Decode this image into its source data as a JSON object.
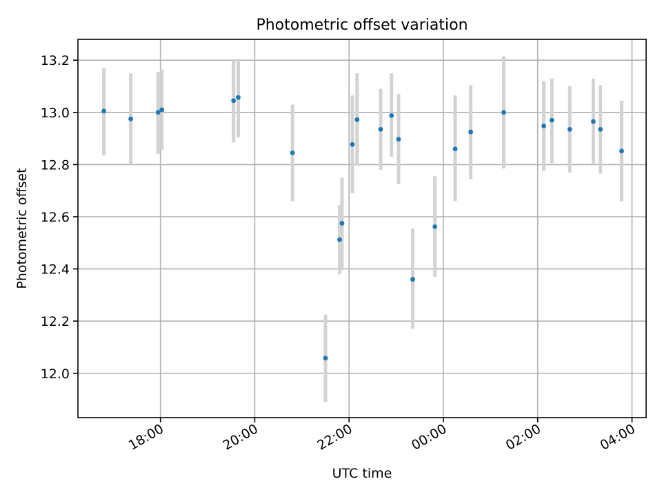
{
  "chart_data": {
    "type": "scatter",
    "title": "Photometric offset variation",
    "xlabel": "UTC time",
    "ylabel": "Photometric offset",
    "x_unit": "hours after 00:00 UTC of the first night (values > 24 are after midnight)",
    "xlim": [
      16.25,
      28.3
    ],
    "ylim": [
      11.83,
      13.28
    ],
    "grid": true,
    "x_ticks": [
      {
        "value": 18,
        "label": "18:00"
      },
      {
        "value": 20,
        "label": "20:00"
      },
      {
        "value": 22,
        "label": "22:00"
      },
      {
        "value": 24,
        "label": "00:00"
      },
      {
        "value": 26,
        "label": "02:00"
      },
      {
        "value": 28,
        "label": "04:00"
      }
    ],
    "y_ticks": [
      {
        "value": 12.0,
        "label": "12.0"
      },
      {
        "value": 12.2,
        "label": "12.2"
      },
      {
        "value": 12.4,
        "label": "12.4"
      },
      {
        "value": 12.6,
        "label": "12.6"
      },
      {
        "value": 12.8,
        "label": "12.8"
      },
      {
        "value": 13.0,
        "label": "13.0"
      },
      {
        "value": 13.2,
        "label": "13.2"
      }
    ],
    "series": [
      {
        "marker_color": "#1f77b4",
        "errorbar_color": "#d3d3d3",
        "points": [
          {
            "x": 16.8,
            "y": 13.005,
            "lo": 12.835,
            "hi": 13.17
          },
          {
            "x": 17.37,
            "y": 12.975,
            "lo": 12.8,
            "hi": 13.15
          },
          {
            "x": 17.95,
            "y": 13.0,
            "lo": 12.84,
            "hi": 13.155
          },
          {
            "x": 18.03,
            "y": 13.01,
            "lo": 12.855,
            "hi": 13.165
          },
          {
            "x": 19.55,
            "y": 13.045,
            "lo": 12.885,
            "hi": 13.2
          },
          {
            "x": 19.65,
            "y": 13.057,
            "lo": 12.905,
            "hi": 13.205
          },
          {
            "x": 20.8,
            "y": 12.845,
            "lo": 12.66,
            "hi": 13.03
          },
          {
            "x": 21.5,
            "y": 12.058,
            "lo": 11.89,
            "hi": 12.225
          },
          {
            "x": 21.8,
            "y": 12.512,
            "lo": 12.38,
            "hi": 12.645
          },
          {
            "x": 21.85,
            "y": 12.575,
            "lo": 12.395,
            "hi": 12.75
          },
          {
            "x": 22.07,
            "y": 12.877,
            "lo": 12.69,
            "hi": 13.065
          },
          {
            "x": 22.17,
            "y": 12.972,
            "lo": 12.795,
            "hi": 13.15
          },
          {
            "x": 22.67,
            "y": 12.935,
            "lo": 12.78,
            "hi": 13.09
          },
          {
            "x": 22.9,
            "y": 12.988,
            "lo": 12.83,
            "hi": 13.15
          },
          {
            "x": 23.05,
            "y": 12.897,
            "lo": 12.725,
            "hi": 13.07
          },
          {
            "x": 23.35,
            "y": 12.36,
            "lo": 12.17,
            "hi": 12.555
          },
          {
            "x": 23.82,
            "y": 12.562,
            "lo": 12.37,
            "hi": 12.755
          },
          {
            "x": 24.25,
            "y": 12.86,
            "lo": 12.66,
            "hi": 13.065
          },
          {
            "x": 24.58,
            "y": 12.925,
            "lo": 12.745,
            "hi": 13.105
          },
          {
            "x": 25.28,
            "y": 13.0,
            "lo": 12.785,
            "hi": 13.215
          },
          {
            "x": 26.13,
            "y": 12.948,
            "lo": 12.775,
            "hi": 13.12
          },
          {
            "x": 26.3,
            "y": 12.97,
            "lo": 12.805,
            "hi": 13.13
          },
          {
            "x": 26.68,
            "y": 12.935,
            "lo": 12.77,
            "hi": 13.1
          },
          {
            "x": 27.18,
            "y": 12.965,
            "lo": 12.8,
            "hi": 13.13
          },
          {
            "x": 27.33,
            "y": 12.935,
            "lo": 12.765,
            "hi": 13.105
          },
          {
            "x": 27.78,
            "y": 12.852,
            "lo": 12.66,
            "hi": 13.045
          }
        ]
      }
    ]
  }
}
